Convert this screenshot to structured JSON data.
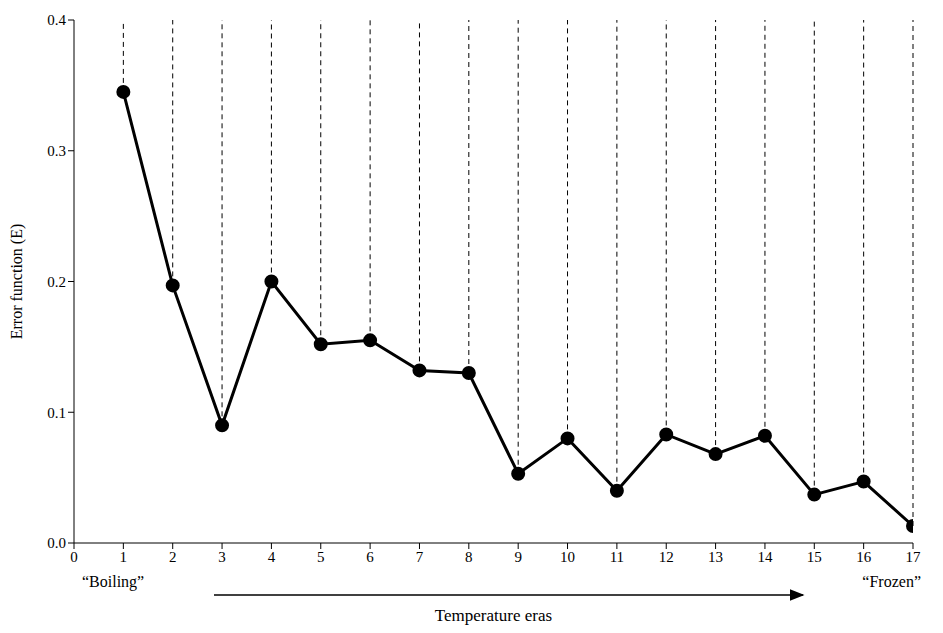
{
  "chart_data": {
    "type": "line",
    "x": [
      1,
      2,
      3,
      4,
      5,
      6,
      7,
      8,
      9,
      10,
      11,
      12,
      13,
      14,
      15,
      16,
      17
    ],
    "values": [
      0.345,
      0.197,
      0.09,
      0.2,
      0.152,
      0.155,
      0.132,
      0.13,
      0.053,
      0.08,
      0.04,
      0.083,
      0.068,
      0.082,
      0.037,
      0.047,
      0.013
    ],
    "color": "#000000",
    "marker": "circle",
    "line_style": "solid",
    "xlim": [
      0,
      17
    ],
    "xticks": [
      0,
      1,
      2,
      3,
      4,
      5,
      6,
      7,
      8,
      9,
      10,
      11,
      12,
      13,
      14,
      15,
      16,
      17
    ],
    "ylim": [
      0,
      0.4
    ],
    "yticks": [
      {
        "value": 0,
        "label": "0.0"
      },
      0.1,
      0.2,
      0.3,
      0.4
    ],
    "xlabel": "Temperature eras",
    "ylabel": "Error function (E)",
    "annotations": [
      "“Boiling”",
      "“Frozen”"
    ],
    "grid": false
  }
}
